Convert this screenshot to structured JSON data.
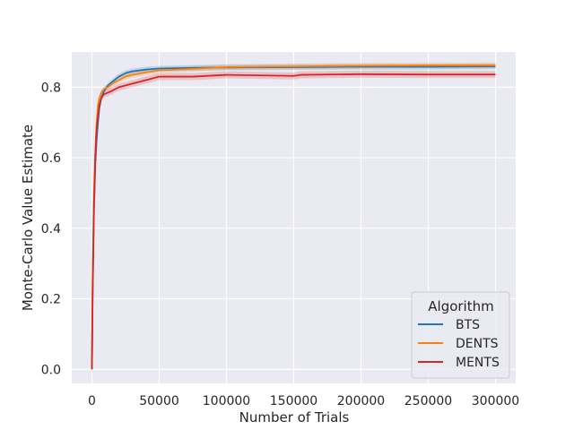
{
  "chart_data": {
    "type": "line",
    "title": "",
    "xlabel": "Number of Trials",
    "ylabel": "Monte-Carlo Value Estimate",
    "xlim": [
      -15000,
      315000
    ],
    "ylim": [
      -0.04,
      0.9
    ],
    "xticks": [
      0,
      50000,
      100000,
      150000,
      200000,
      250000,
      300000
    ],
    "xtick_labels": [
      "0",
      "50000",
      "100000",
      "150000",
      "200000",
      "250000",
      "300000"
    ],
    "yticks": [
      0.0,
      0.2,
      0.4,
      0.6,
      0.8
    ],
    "ytick_labels": [
      "0.0",
      "0.2",
      "0.4",
      "0.6",
      "0.8"
    ],
    "grid": true,
    "legend": {
      "title": "Algorithm",
      "placement": "lower-right"
    },
    "series": [
      {
        "name": "BTS",
        "color": "#1f77b4",
        "points": [
          [
            0,
            0.0
          ],
          [
            500,
            0.2
          ],
          [
            1500,
            0.45
          ],
          [
            2500,
            0.58
          ],
          [
            3500,
            0.65
          ],
          [
            4500,
            0.7
          ],
          [
            5500,
            0.74
          ],
          [
            7000,
            0.77
          ],
          [
            9000,
            0.79
          ],
          [
            12000,
            0.805
          ],
          [
            15000,
            0.815
          ],
          [
            20000,
            0.83
          ],
          [
            25000,
            0.84
          ],
          [
            30000,
            0.845
          ],
          [
            40000,
            0.85
          ],
          [
            50000,
            0.853
          ],
          [
            75000,
            0.855
          ],
          [
            100000,
            0.856
          ],
          [
            150000,
            0.857
          ],
          [
            200000,
            0.858
          ],
          [
            250000,
            0.858
          ],
          [
            300000,
            0.859
          ]
        ],
        "band": 0.008
      },
      {
        "name": "DENTS",
        "color": "#ff7f0e",
        "points": [
          [
            0,
            0.0
          ],
          [
            500,
            0.25
          ],
          [
            1500,
            0.5
          ],
          [
            2500,
            0.62
          ],
          [
            3500,
            0.7
          ],
          [
            4500,
            0.75
          ],
          [
            5500,
            0.77
          ],
          [
            7000,
            0.785
          ],
          [
            9000,
            0.795
          ],
          [
            12000,
            0.8
          ],
          [
            15000,
            0.81
          ],
          [
            20000,
            0.82
          ],
          [
            25000,
            0.83
          ],
          [
            30000,
            0.835
          ],
          [
            40000,
            0.842
          ],
          [
            50000,
            0.848
          ],
          [
            75000,
            0.852
          ],
          [
            100000,
            0.857
          ],
          [
            150000,
            0.859
          ],
          [
            200000,
            0.861
          ],
          [
            250000,
            0.862
          ],
          [
            300000,
            0.862
          ]
        ],
        "band": 0.008
      },
      {
        "name": "MENTS",
        "color": "#d62728",
        "points": [
          [
            0,
            0.0
          ],
          [
            500,
            0.22
          ],
          [
            1500,
            0.46
          ],
          [
            2500,
            0.6
          ],
          [
            3500,
            0.68
          ],
          [
            4500,
            0.72
          ],
          [
            5500,
            0.75
          ],
          [
            7000,
            0.77
          ],
          [
            9000,
            0.78
          ],
          [
            12000,
            0.785
          ],
          [
            15000,
            0.79
          ],
          [
            20000,
            0.8
          ],
          [
            25000,
            0.805
          ],
          [
            30000,
            0.81
          ],
          [
            40000,
            0.82
          ],
          [
            50000,
            0.83
          ],
          [
            75000,
            0.83
          ],
          [
            100000,
            0.835
          ],
          [
            150000,
            0.832
          ],
          [
            155000,
            0.835
          ],
          [
            200000,
            0.837
          ],
          [
            250000,
            0.836
          ],
          [
            300000,
            0.836
          ]
        ],
        "band": 0.01
      }
    ]
  }
}
